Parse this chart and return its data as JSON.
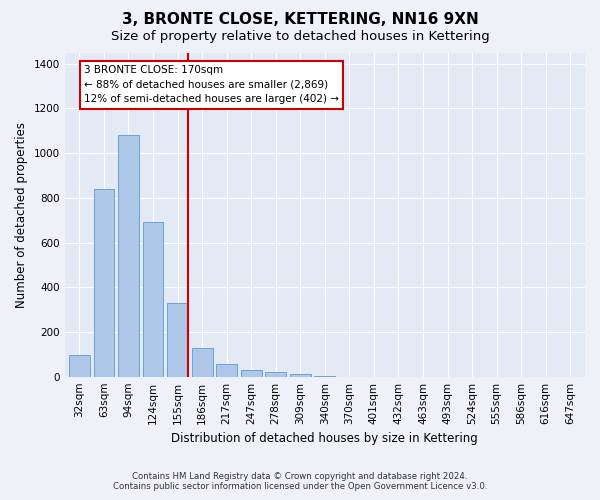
{
  "title": "3, BRONTE CLOSE, KETTERING, NN16 9XN",
  "subtitle": "Size of property relative to detached houses in Kettering",
  "xlabel": "Distribution of detached houses by size in Kettering",
  "ylabel": "Number of detached properties",
  "categories": [
    "32sqm",
    "63sqm",
    "94sqm",
    "124sqm",
    "155sqm",
    "186sqm",
    "217sqm",
    "247sqm",
    "278sqm",
    "309sqm",
    "340sqm",
    "370sqm",
    "401sqm",
    "432sqm",
    "463sqm",
    "493sqm",
    "524sqm",
    "555sqm",
    "586sqm",
    "616sqm",
    "647sqm"
  ],
  "values": [
    97,
    840,
    1080,
    690,
    330,
    130,
    55,
    30,
    20,
    12,
    5,
    0,
    0,
    0,
    0,
    0,
    0,
    0,
    0,
    0,
    0
  ],
  "bar_color": "#aec6e8",
  "bar_edge_color": "#5b9bd5",
  "marker_bin_index": 4,
  "marker_color": "#cc0000",
  "annotation_line1": "3 BRONTE CLOSE: 170sqm",
  "annotation_line2": "← 88% of detached houses are smaller (2,869)",
  "annotation_line3": "12% of semi-detached houses are larger (402) →",
  "ylim_max": 1450,
  "yticks": [
    0,
    200,
    400,
    600,
    800,
    1000,
    1200,
    1400
  ],
  "footnote1": "Contains HM Land Registry data © Crown copyright and database right 2024.",
  "footnote2": "Contains public sector information licensed under the Open Government Licence v3.0.",
  "background_color": "#eef2f8",
  "plot_bg_color": "#e4eaf5",
  "grid_color": "#ffffff",
  "title_fontsize": 11,
  "subtitle_fontsize": 9.5,
  "tick_fontsize": 7.5,
  "ylabel_fontsize": 8.5,
  "xlabel_fontsize": 8.5,
  "annot_fontsize": 7.5
}
